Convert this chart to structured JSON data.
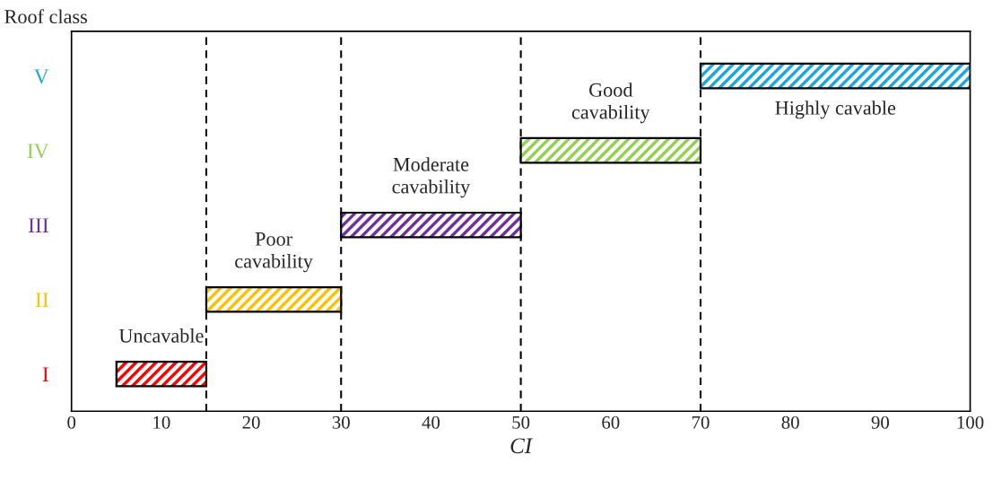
{
  "chart_data": {
    "type": "bar",
    "orientation": "horizontal",
    "ylabel": "Roof class",
    "xlabel": "CI",
    "categories": [
      "V",
      "IV",
      "III",
      "II",
      "I"
    ],
    "base": [
      70,
      50,
      30,
      15,
      5
    ],
    "values": [
      30,
      20,
      20,
      15,
      10
    ],
    "colors": [
      "#1aa7e0",
      "#92d050",
      "#7030a0",
      "#ffc000",
      "#ff0000"
    ],
    "xlim": [
      0,
      100
    ],
    "xticks": [
      0,
      10,
      20,
      30,
      40,
      50,
      60,
      70,
      80,
      90,
      100
    ],
    "grid": false,
    "legend": false,
    "ref_lines": [
      {
        "axis": "x",
        "value": 15,
        "color": "#000000",
        "line_style": "dashed"
      },
      {
        "axis": "x",
        "value": 30,
        "color": "#000000",
        "line_style": "dashed"
      },
      {
        "axis": "x",
        "value": 50,
        "color": "#000000",
        "line_style": "dashed"
      },
      {
        "axis": "x",
        "value": 70,
        "color": "#000000",
        "line_style": "dashed"
      }
    ],
    "annotations": [
      "Uncavable",
      "Poor\ncavability",
      "Moderate\ncavability",
      "Good\ncavability",
      "Highly cavable"
    ]
  }
}
